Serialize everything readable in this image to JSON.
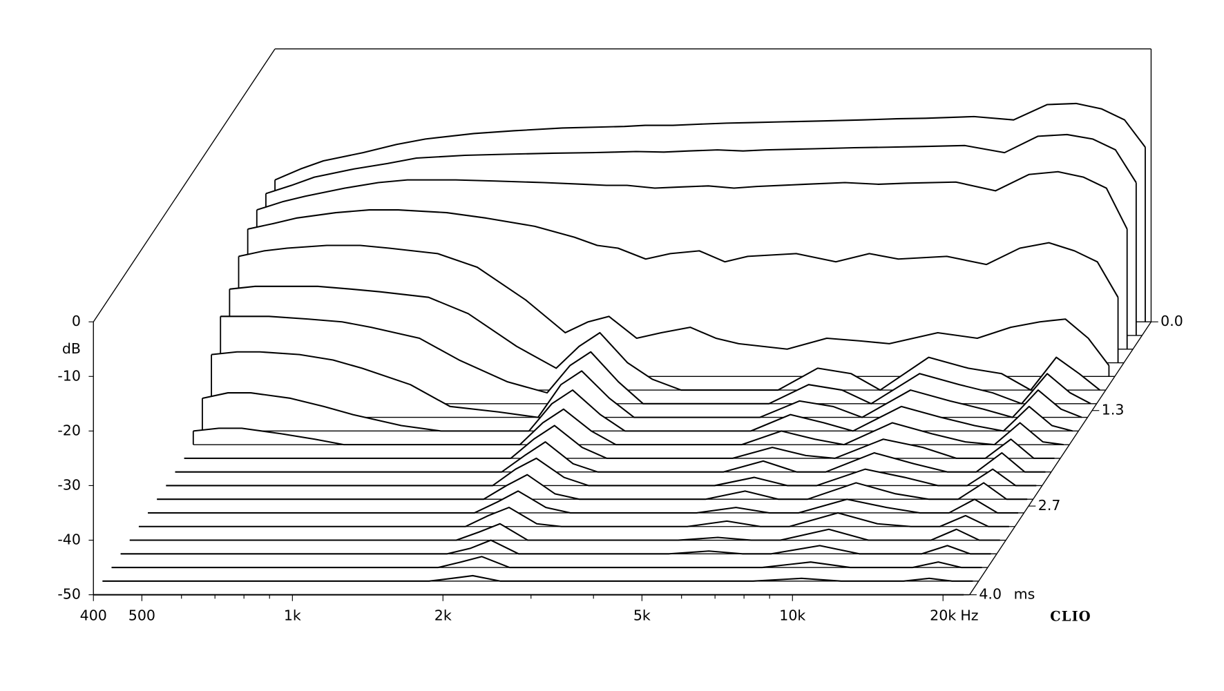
{
  "chart_data": {
    "type": "waterfall",
    "x": [
      400,
      450,
      500,
      600,
      700,
      800,
      1000,
      1200,
      1500,
      1800,
      2000,
      2200,
      2500,
      2800,
      3200,
      3600,
      4000,
      5000,
      6000,
      7000,
      8000,
      10000,
      12000,
      14000,
      16000,
      18000,
      20000,
      22000
    ],
    "xlim": [
      400,
      22600
    ],
    "xscale": "log",
    "xticks": [
      400,
      500,
      {
        "value": 1000,
        "label": "1k"
      },
      {
        "value": 2000,
        "label": "2k"
      },
      {
        "value": 5000,
        "label": "5k"
      },
      {
        "value": 10000,
        "label": "10k"
      },
      {
        "value": 20000,
        "label": "20k"
      }
    ],
    "xminor_ticks": [
      600,
      700,
      800,
      900,
      3000,
      4000,
      6000,
      7000,
      8000,
      9000
    ],
    "x_unit": "Hz",
    "ylim": [
      -50,
      0
    ],
    "yticks": [
      0,
      -10,
      -20,
      -30,
      -40,
      -50
    ],
    "y_unit": "dB",
    "zlim": [
      0,
      4
    ],
    "zticks": [
      {
        "value": 0,
        "label": "0.0"
      },
      1.3,
      2.7,
      {
        "value": 4,
        "label": "4.0"
      }
    ],
    "z_unit": "ms",
    "z": [
      0,
      0.2,
      0.4,
      0.6,
      0.8,
      1.0,
      1.2,
      1.4,
      1.6,
      1.8,
      2.0,
      2.2,
      2.4,
      2.6,
      2.8,
      3.0,
      3.2,
      3.4,
      3.6,
      3.8,
      4.0
    ],
    "color": "#000000",
    "brand": "CLIO",
    "series": [
      {
        "values": [
          -24,
          -22,
          -20.5,
          -19,
          -17.5,
          -16.5,
          -15.5,
          -15,
          -14.5,
          -14.3,
          -14.2,
          -14,
          -14,
          -13.8,
          -13.6,
          -13.5,
          -13.4,
          -13.2,
          -13,
          -12.8,
          -12.7,
          -12.4,
          -13,
          -10.2,
          -10,
          -11,
          -13,
          -18
        ]
      },
      {
        "values": [
          -24,
          -22.5,
          -21,
          -19.5,
          -18.5,
          -17.5,
          -17,
          -16.8,
          -16.6,
          -16.5,
          -16.4,
          -16.3,
          -16.4,
          -16.2,
          -16,
          -16.2,
          -16,
          -15.8,
          -15.6,
          -15.5,
          -15.4,
          -15.2,
          -16.5,
          -13.5,
          -13.2,
          -14,
          -16,
          -22
        ]
      },
      {
        "values": [
          -24.5,
          -23,
          -22,
          -20.5,
          -19.5,
          -19,
          -19,
          -19.2,
          -19.5,
          -19.8,
          -20,
          -20,
          -20.5,
          -20.3,
          -20.1,
          -20.5,
          -20.2,
          -19.8,
          -19.5,
          -19.8,
          -19.6,
          -19.4,
          -21,
          -18,
          -17.5,
          -18.5,
          -20.5,
          -28
        ]
      },
      {
        "values": [
          -25.5,
          -24.5,
          -23.5,
          -22.5,
          -22,
          -22,
          -22.5,
          -23.5,
          -25,
          -27,
          -28.5,
          -29,
          -31,
          -30,
          -29.5,
          -31.5,
          -30.5,
          -30,
          -31.5,
          -30,
          -31,
          -30.5,
          -32,
          -29,
          -28,
          -29.5,
          -31.5,
          -38
        ]
      },
      {
        "values": [
          -28,
          -27,
          -26.5,
          -26,
          -26,
          -26.5,
          -27.5,
          -30,
          -36,
          -42,
          -40,
          -39,
          -43,
          -42,
          -41,
          -43,
          -44,
          -45,
          -43,
          -43.5,
          -44,
          -42,
          -43,
          -41,
          -40,
          -39.5,
          -43,
          -48
        ]
      },
      {
        "values": [
          -31.5,
          -31,
          -31,
          -31,
          -31.5,
          -32,
          -33,
          -36,
          -42,
          -46,
          -42,
          -39.5,
          -45,
          -48,
          -50,
          -50,
          -50,
          -50,
          -46,
          -47,
          -50,
          -44,
          -46,
          -47,
          -50,
          -44,
          -47,
          -50
        ]
      },
      {
        "values": [
          -34,
          -34,
          -34,
          -34.5,
          -35,
          -36,
          -38,
          -42,
          -46,
          -48,
          -43,
          -40.5,
          -46,
          -50,
          -50,
          -50,
          -50,
          -50,
          -46.5,
          -47.5,
          -50,
          -44.5,
          -46.5,
          -48,
          -50,
          -44.5,
          -48,
          -50
        ]
      },
      {
        "values": [
          -38.5,
          -38,
          -38,
          -38.5,
          -39.5,
          -41,
          -44,
          -48,
          -49,
          -50,
          -44,
          -41.5,
          -46.5,
          -50,
          -50,
          -50,
          -50,
          -50,
          -47,
          -48,
          -50,
          -45,
          -47,
          -48.5,
          -50,
          -45,
          -48.5,
          -50
        ]
      },
      {
        "values": [
          -44,
          -43,
          -43,
          -44,
          -45.5,
          -47,
          -49,
          -50,
          -50,
          -50,
          -45,
          -42.5,
          -47,
          -50,
          -50,
          -50,
          -50,
          -50,
          -47,
          -48.5,
          -50,
          -45.5,
          -47.5,
          -49,
          -50,
          -45.5,
          -49,
          -50
        ]
      },
      {
        "values": [
          -47.5,
          -47,
          -47,
          -48,
          -49,
          -50,
          -50,
          -50,
          -50,
          -50,
          -46,
          -43.5,
          -47.5,
          -50,
          -50,
          -50,
          -50,
          -50,
          -47.5,
          -49,
          -50,
          -46,
          -48,
          -49.5,
          -50,
          -46,
          -49.5,
          -50
        ]
      },
      {
        "values": [
          -50,
          -50,
          -50,
          -50,
          -50,
          -50,
          -50,
          -50,
          -50,
          -50,
          -46.5,
          -44,
          -48,
          -50,
          -50,
          -50,
          -50,
          -50,
          -48,
          -49.5,
          -50,
          -46.5,
          -48,
          -50,
          -50,
          -46.5,
          -50,
          -50
        ]
      },
      {
        "values": [
          -50,
          -50,
          -50,
          -50,
          -50,
          -50,
          -50,
          -50,
          -50,
          -50,
          -47,
          -44.5,
          -48.5,
          -50,
          -50,
          -50,
          -50,
          -50,
          -48,
          -50,
          -50,
          -46.5,
          -48.5,
          -50,
          -50,
          -46.5,
          -50,
          -50
        ]
      },
      {
        "values": [
          -50,
          -50,
          -50,
          -50,
          -50,
          -50,
          -50,
          -50,
          -50,
          -50,
          -47,
          -45,
          -48.5,
          -50,
          -50,
          -50,
          -50,
          -50,
          -48.5,
          -50,
          -50,
          -47,
          -48.5,
          -50,
          -50,
          -47,
          -50,
          -50
        ]
      },
      {
        "values": [
          -50,
          -50,
          -50,
          -50,
          -50,
          -50,
          -50,
          -50,
          -50,
          -50,
          -47.5,
          -45.5,
          -49,
          -50,
          -50,
          -50,
          -50,
          -50,
          -48.5,
          -50,
          -50,
          -47,
          -49,
          -50,
          -50,
          -47,
          -50,
          -50
        ]
      },
      {
        "values": [
          -50,
          -50,
          -50,
          -50,
          -50,
          -50,
          -50,
          -50,
          -50,
          -50,
          -48,
          -46,
          -49,
          -50,
          -50,
          -50,
          -50,
          -50,
          -49,
          -50,
          -50,
          -47.5,
          -49,
          -50,
          -50,
          -47.5,
          -50,
          -50
        ]
      },
      {
        "values": [
          -50,
          -50,
          -50,
          -50,
          -50,
          -50,
          -50,
          -50,
          -50,
          -50,
          -48,
          -46.5,
          -49.5,
          -50,
          -50,
          -50,
          -50,
          -50,
          -49,
          -50,
          -50,
          -47.5,
          -49.5,
          -50,
          -50,
          -48,
          -50,
          -50
        ]
      },
      {
        "values": [
          -50,
          -50,
          -50,
          -50,
          -50,
          -50,
          -50,
          -50,
          -50,
          -50,
          -48.5,
          -47,
          -50,
          -50,
          -50,
          -50,
          -50,
          -50,
          -49.5,
          -50,
          -50,
          -48,
          -50,
          -50,
          -50,
          -48,
          -50,
          -50
        ]
      },
      {
        "values": [
          -50,
          -50,
          -50,
          -50,
          -50,
          -50,
          -50,
          -50,
          -50,
          -50,
          -49,
          -47.5,
          -50,
          -50,
          -50,
          -50,
          -50,
          -50,
          -49.5,
          -50,
          -50,
          -48.5,
          -50,
          -50,
          -50,
          -48.5,
          -50,
          -50
        ]
      },
      {
        "values": [
          -50,
          -50,
          -50,
          -50,
          -50,
          -50,
          -50,
          -50,
          -50,
          -50,
          -49,
          -48,
          -50,
          -50,
          -50,
          -50,
          -50,
          -50,
          -50,
          -50,
          -50,
          -49,
          -50,
          -50,
          -50,
          -49,
          -50,
          -50
        ]
      },
      {
        "values": [
          -50,
          -50,
          -50,
          -50,
          -50,
          -50,
          -50,
          -50,
          -50,
          -50,
          -49.5,
          -49,
          -50,
          -50,
          -50,
          -50,
          -50,
          -50,
          -50,
          -50,
          -50,
          -49.5,
          -50,
          -50,
          -50,
          -49.5,
          -50,
          -50
        ]
      },
      {
        "values": [
          -50,
          -50,
          -50,
          -50,
          -50,
          -50,
          -50,
          -50,
          -50,
          -50,
          -50,
          -50,
          -50,
          -50,
          -50,
          -50,
          -50,
          -50,
          -50,
          -50,
          -50,
          -50,
          -50,
          -50,
          -50,
          -50,
          -50,
          -50
        ]
      }
    ]
  }
}
